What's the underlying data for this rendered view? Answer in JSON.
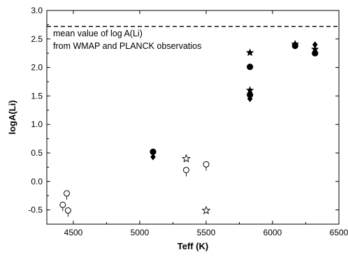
{
  "chart_data": {
    "type": "scatter",
    "xlabel": "Teff (K)",
    "ylabel": "logA(Li)",
    "xlim": [
      4300,
      6500
    ],
    "ylim": [
      -0.75,
      3.0
    ],
    "xticks": [
      4500,
      5000,
      5500,
      6000,
      6500
    ],
    "yticks": [
      -0.5,
      0.0,
      0.5,
      1.0,
      1.5,
      2.0,
      2.5,
      3.0
    ],
    "xtick_labels": [
      "4500",
      "5000",
      "5500",
      "6000",
      "6500"
    ],
    "ytick_labels": [
      "-0.5",
      "0.0",
      "0.5",
      "1.0",
      "1.5",
      "2.0",
      "2.5",
      "3.0"
    ],
    "grid": false,
    "reference_line": {
      "y": 2.72,
      "style": "dashed"
    },
    "annotation": [
      "mean value of log A(Li)",
      "from WMAP and PLANCK observatios"
    ],
    "series": [
      {
        "marker": "filled-circle",
        "points": [
          [
            5100,
            0.52
          ],
          [
            5830,
            2.01
          ],
          [
            5830,
            1.52
          ],
          [
            6170,
            2.38
          ],
          [
            6320,
            2.25
          ]
        ]
      },
      {
        "marker": "filled-diamond",
        "points": [
          [
            5100,
            0.43
          ],
          [
            5830,
            1.45
          ],
          [
            6170,
            2.41
          ],
          [
            6320,
            2.4
          ]
        ]
      },
      {
        "marker": "filled-star",
        "points": [
          [
            5830,
            2.26
          ],
          [
            5830,
            1.6
          ],
          [
            6170,
            2.41
          ],
          [
            6320,
            2.32
          ]
        ]
      },
      {
        "marker": "open-circle-with-arrow",
        "points": [
          [
            4420,
            -0.41
          ],
          [
            4450,
            -0.21
          ],
          [
            4460,
            -0.51
          ],
          [
            5350,
            0.2
          ],
          [
            5500,
            0.3
          ]
        ]
      },
      {
        "marker": "open-star",
        "points": [
          [
            5350,
            0.4
          ],
          [
            5500,
            -0.51
          ]
        ]
      }
    ]
  }
}
